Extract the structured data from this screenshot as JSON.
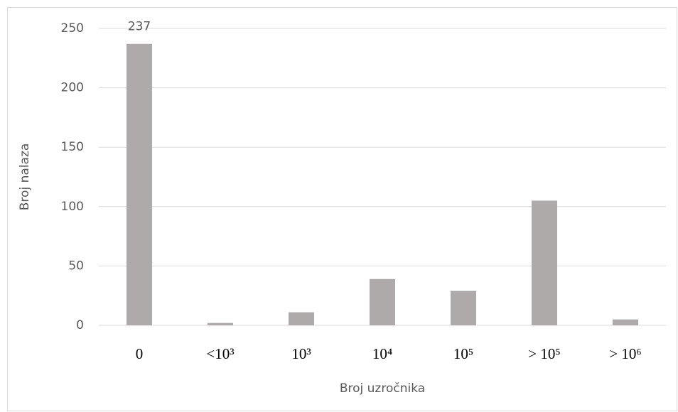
{
  "chart_data": {
    "type": "bar",
    "categories": [
      "0",
      "<10³",
      "10³",
      "10⁴",
      "10⁵",
      "> 10⁵",
      "> 10⁶"
    ],
    "values": [
      237,
      2,
      11,
      39,
      29,
      105,
      5
    ],
    "value_labels": [
      "237",
      null,
      null,
      null,
      null,
      null,
      null
    ],
    "color": "#aeaaaa",
    "ylim": [
      0,
      250
    ],
    "yticks": [
      0,
      50,
      100,
      150,
      200,
      250
    ],
    "grid": true,
    "x_label": "Broj uzročnika",
    "y_label": "Broj nalaza"
  }
}
